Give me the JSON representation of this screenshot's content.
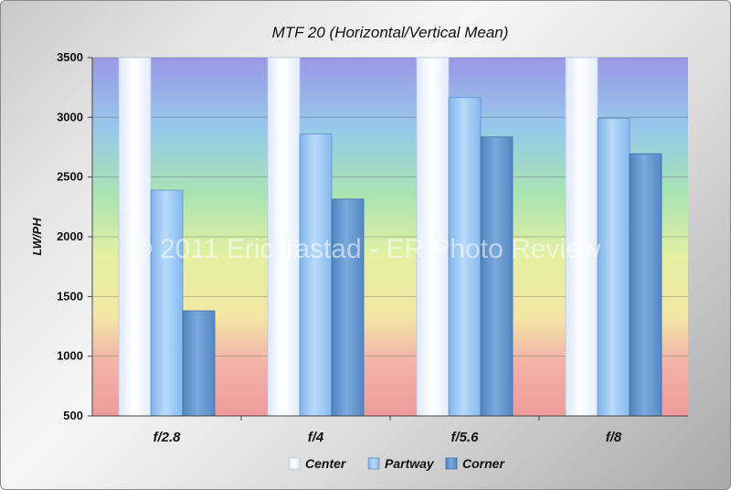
{
  "chart_data": {
    "type": "bar",
    "title": "MTF 20 (Horizontal/Vertical Mean)",
    "xlabel": "",
    "ylabel": "LW/PH",
    "categories": [
      "f/2.8",
      "f/4",
      "f/5.6",
      "f/8"
    ],
    "ylim": [
      500,
      3500
    ],
    "yticks": [
      500,
      1000,
      1500,
      2000,
      2500,
      3000,
      3500
    ],
    "series": [
      {
        "name": "Center",
        "values": [
          3500,
          3500,
          3500,
          3500
        ]
      },
      {
        "name": "Partway",
        "values": [
          2390,
          2860,
          3165,
          2990
        ]
      },
      {
        "name": "Corner",
        "values": [
          1380,
          2315,
          2835,
          2695
        ]
      }
    ],
    "grid": true,
    "legend_position": "bottom",
    "background": "vertical color gradient (red low to blue high)"
  },
  "watermark": "© 2011 Eric Tastad - ER Photo Review",
  "colors": {
    "center": "#eef4ff",
    "partway": "#8fc0f0",
    "corner": "#5d8fc8"
  }
}
